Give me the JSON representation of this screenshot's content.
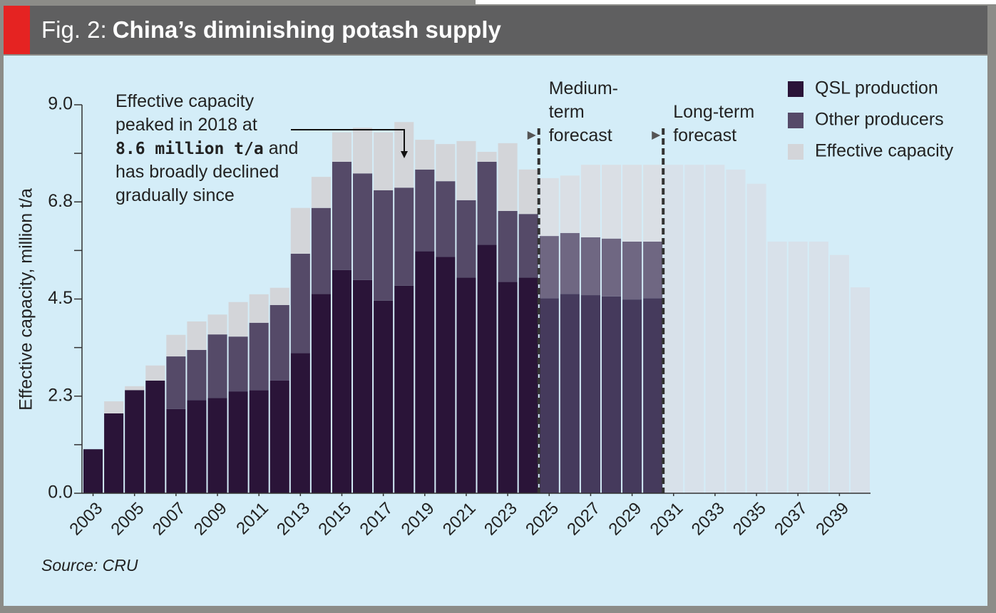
{
  "chart_data": {
    "type": "stacked-bar",
    "title_prefix": "Fig. 2:",
    "title": "China’s diminishing potash supply",
    "ylabel": "Effective capacity, million t/a",
    "source": "Source: CRU",
    "x": [
      2003,
      2004,
      2005,
      2006,
      2007,
      2008,
      2009,
      2010,
      2011,
      2012,
      2013,
      2014,
      2015,
      2016,
      2017,
      2018,
      2019,
      2020,
      2021,
      2022,
      2023,
      2024,
      2025,
      2026,
      2027,
      2028,
      2029,
      2030,
      2031,
      2032,
      2033,
      2034,
      2035,
      2036,
      2037,
      2038,
      2039,
      2040
    ],
    "xlim": [
      2002.5,
      2040.5
    ],
    "xticks": [
      2003,
      2005,
      2007,
      2009,
      2011,
      2013,
      2015,
      2017,
      2019,
      2021,
      2023,
      2025,
      2027,
      2029,
      2031,
      2033,
      2035,
      2037,
      2039
    ],
    "ylim": [
      0,
      9
    ],
    "yticks": [
      {
        "value": 0,
        "label": "0.0"
      },
      {
        "value": 2.25,
        "label": "2.3"
      },
      4.5,
      {
        "value": 6.75,
        "label": "6.8"
      },
      {
        "value": 9,
        "label": "9.0"
      }
    ],
    "yminor": [
      1.125,
      3.375,
      5.625,
      7.875
    ],
    "series": [
      {
        "name": "QSL production",
        "color": "#2a1438",
        "medium_color": "#453a5c",
        "values": [
          1.02,
          1.85,
          2.39,
          2.61,
          1.95,
          2.16,
          2.21,
          2.36,
          2.39,
          2.61,
          3.25,
          4.62,
          5.17,
          4.94,
          4.46,
          4.81,
          5.61,
          5.48,
          5.0,
          5.76,
          4.9,
          5.0,
          4.52,
          4.62,
          4.59,
          4.56,
          4.49,
          4.52,
          null,
          null,
          null,
          null,
          null,
          null,
          null,
          null,
          null,
          null
        ]
      },
      {
        "name": "Other producers",
        "color": "#554a68",
        "medium_color": "#6f6782",
        "values": [
          null,
          null,
          null,
          null,
          1.22,
          1.16,
          1.47,
          1.27,
          1.56,
          1.75,
          2.3,
          1.99,
          2.51,
          2.47,
          2.56,
          2.27,
          1.89,
          1.75,
          1.79,
          1.92,
          1.64,
          1.47,
          1.44,
          1.41,
          1.34,
          1.34,
          1.34,
          1.31,
          null,
          null,
          null,
          null,
          null,
          null,
          null,
          null,
          null,
          null
        ]
      },
      {
        "name": "Effective capacity",
        "color": "#d3d5d9",
        "medium_color": "#dadfe5",
        "long_color": "#d8e1ea",
        "values": [
          null,
          0.28,
          0.09,
          0.35,
          0.5,
          0.66,
          0.46,
          0.8,
          0.66,
          0.4,
          1.06,
          0.72,
          0.68,
          1.06,
          1.34,
          1.52,
          0.69,
          0.86,
          1.37,
          0.23,
          1.57,
          1.03,
          1.34,
          1.33,
          1.68,
          1.71,
          1.78,
          1.78,
          7.61,
          7.61,
          7.61,
          7.5,
          7.17,
          5.83,
          5.83,
          5.83,
          5.52,
          4.77
        ]
      }
    ],
    "periods": [
      {
        "name": "medium",
        "from": 2025,
        "label": [
          "Medium-",
          "term",
          "forecast"
        ]
      },
      {
        "name": "long",
        "from": 2031,
        "label": [
          "Long-term",
          "forecast"
        ]
      }
    ],
    "annotation": {
      "lines": [
        [
          "Effective capacity"
        ],
        [
          "peaked in 2018 at"
        ],
        [
          {
            "text": "8.6 million t/a",
            "bold": true
          },
          {
            "text": "and"
          }
        ],
        [
          "has broadly declined"
        ],
        [
          "gradually since"
        ]
      ],
      "points_to": 2018
    },
    "legend": "top-right"
  }
}
